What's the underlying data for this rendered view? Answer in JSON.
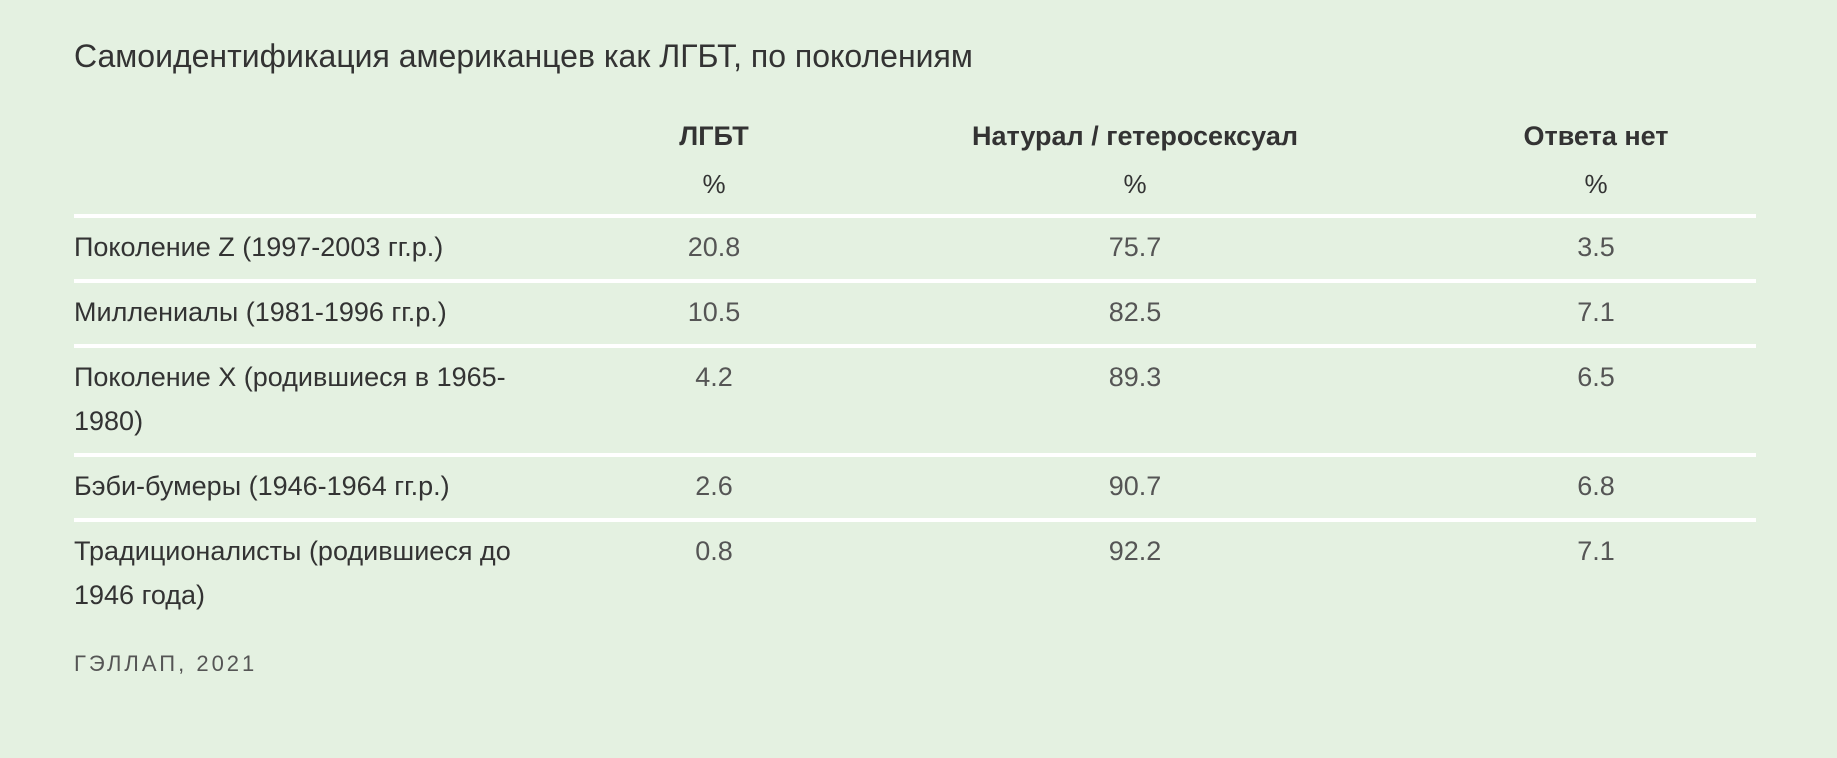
{
  "title": "Самоидентификация американцев как ЛГБТ, по поколениям",
  "source": "ГЭЛЛАП, 2021",
  "chart_data": {
    "type": "table",
    "title": "Самоидентификация американцев как ЛГБТ, по поколениям",
    "columns": [
      {
        "label": "ЛГБТ",
        "unit": "%"
      },
      {
        "label": "Натурал / гетеросексуал",
        "unit": "%"
      },
      {
        "label": "Ответа нет",
        "unit": "%"
      }
    ],
    "rows": [
      {
        "label": "Поколение Z (1997-2003 гг.р.)",
        "values": [
          "20.8",
          "75.7",
          "3.5"
        ]
      },
      {
        "label": "Миллениалы (1981-1996 гг.р.)",
        "values": [
          "10.5",
          "82.5",
          "7.1"
        ]
      },
      {
        "label": "Поколение X (родившиеся в 1965-1980)",
        "values": [
          "4.2",
          "89.3",
          "6.5"
        ]
      },
      {
        "label": "Бэби-бумеры (1946-1964 гг.р.)",
        "values": [
          "2.6",
          "90.7",
          "6.8"
        ]
      },
      {
        "label": "Традиционалисты (родившиеся до 1946 года)",
        "values": [
          "0.8",
          "92.2",
          "7.1"
        ]
      }
    ],
    "source": "ГЭЛЛАП, 2021"
  }
}
